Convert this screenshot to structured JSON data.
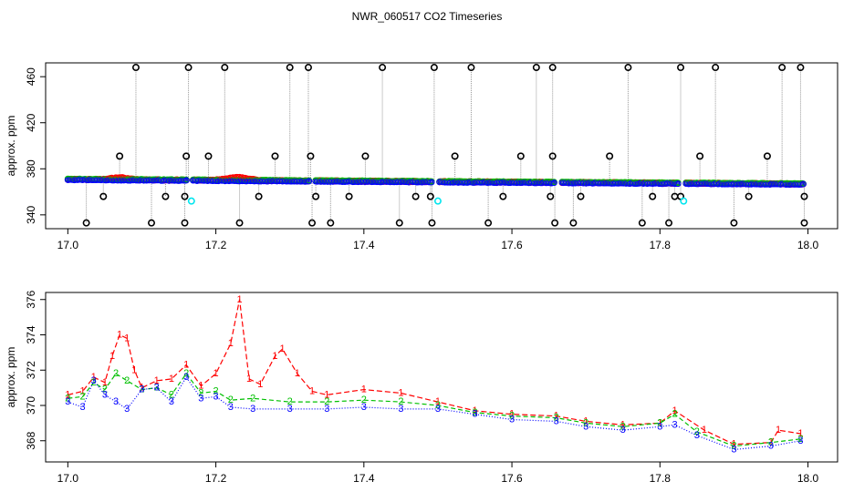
{
  "figure": {
    "title": "NWR_060517  CO2 Timeseries"
  },
  "colors": {
    "series1": "#ff0000",
    "series2": "#00c000",
    "series3": "#0000ff",
    "flagged": "#000000",
    "cyan": "#00e5ee",
    "drop": "#999999"
  },
  "chart_data": [
    {
      "type": "scatter",
      "title": "NWR_060517  CO2 Timeseries",
      "xlabel": "",
      "ylabel": "approx. ppm",
      "xlim": [
        16.97,
        18.04
      ],
      "ylim": [
        328,
        472
      ],
      "x_ticks": [
        17.0,
        17.2,
        17.4,
        17.6,
        17.8,
        18.0
      ],
      "x_tick_labels": [
        "17.0",
        "17.2",
        "17.4",
        "17.6",
        "17.8",
        "18.0"
      ],
      "y_ticks": [
        340,
        380,
        420,
        460
      ],
      "y_tick_labels": [
        "340",
        "380",
        "420",
        "460"
      ],
      "main_series": {
        "name": "",
        "x_start": 17.0,
        "x_end": 17.995,
        "y_start": 370.5,
        "y_end": 366.5
      },
      "flagged_high": [
        17.092,
        17.163,
        17.212,
        17.3,
        17.325,
        17.425,
        17.495,
        17.545,
        17.633,
        17.655,
        17.757,
        17.828,
        17.875,
        17.965,
        17.99
      ],
      "flagged_mid_high": [
        17.07,
        17.16,
        17.19,
        17.28,
        17.328,
        17.402,
        17.523,
        17.612,
        17.655,
        17.732,
        17.854,
        17.945
      ],
      "flagged_mid_low": [
        17.048,
        17.132,
        17.158,
        17.258,
        17.335,
        17.38,
        17.47,
        17.49,
        17.588,
        17.652,
        17.693,
        17.79,
        17.828,
        17.82,
        17.92,
        17.995
      ],
      "flagged_low": [
        17.025,
        17.113,
        17.158,
        17.232,
        17.33,
        17.355,
        17.448,
        17.492,
        17.568,
        17.658,
        17.683,
        17.776,
        17.812,
        17.9,
        17.995
      ],
      "cyan_points": [
        {
          "x": 17.167,
          "y": 352
        },
        {
          "x": 17.5,
          "y": 352
        },
        {
          "x": 17.832,
          "y": 352
        }
      ]
    },
    {
      "type": "line",
      "title": "",
      "xlabel": "",
      "ylabel": "approx. ppm",
      "xlim": [
        16.97,
        18.04
      ],
      "ylim": [
        366.8,
        376.4
      ],
      "x_ticks": [
        17.0,
        17.2,
        17.4,
        17.6,
        17.8,
        18.0
      ],
      "x_tick_labels": [
        "17.0",
        "17.2",
        "17.4",
        "17.6",
        "17.8",
        "18.0"
      ],
      "y_ticks": [
        368,
        370,
        372,
        374,
        376
      ],
      "y_tick_labels": [
        "368",
        "370",
        "372",
        "374",
        "376"
      ],
      "series": [
        {
          "name": "1",
          "marker": "1",
          "x": [
            17.0,
            17.02,
            17.035,
            17.05,
            17.06,
            17.07,
            17.08,
            17.09,
            17.1,
            17.12,
            17.14,
            17.16,
            17.18,
            17.2,
            17.22,
            17.232,
            17.245,
            17.26,
            17.28,
            17.29,
            17.31,
            17.33,
            17.35,
            17.4,
            17.45,
            17.5,
            17.55,
            17.6,
            17.66,
            17.7,
            17.75,
            17.8,
            17.82,
            17.86,
            17.9,
            17.95,
            17.96,
            17.99
          ],
          "y": [
            370.6,
            370.8,
            371.6,
            371.3,
            372.8,
            374.0,
            373.8,
            372.0,
            371.0,
            371.4,
            371.5,
            372.3,
            371.1,
            371.8,
            373.5,
            376.0,
            371.5,
            371.2,
            372.8,
            373.2,
            371.8,
            370.8,
            370.6,
            370.9,
            370.7,
            370.2,
            369.7,
            369.5,
            369.4,
            369.1,
            368.9,
            369.0,
            369.7,
            368.6,
            367.8,
            367.9,
            368.6,
            368.4
          ]
        },
        {
          "name": "2",
          "marker": "2",
          "x": [
            17.0,
            17.02,
            17.035,
            17.05,
            17.065,
            17.08,
            17.1,
            17.12,
            17.14,
            17.16,
            17.18,
            17.2,
            17.22,
            17.25,
            17.3,
            17.35,
            17.4,
            17.45,
            17.5,
            17.55,
            17.6,
            17.66,
            17.7,
            17.75,
            17.8,
            17.82,
            17.85,
            17.9,
            17.95,
            17.99
          ],
          "y": [
            370.4,
            370.5,
            371.3,
            370.9,
            371.8,
            371.4,
            370.9,
            371.0,
            370.6,
            371.8,
            370.7,
            370.8,
            370.3,
            370.4,
            370.2,
            370.2,
            370.3,
            370.2,
            370.0,
            369.6,
            369.4,
            369.3,
            369.0,
            368.8,
            369.0,
            369.5,
            368.5,
            367.7,
            367.9,
            368.1
          ]
        },
        {
          "name": "3",
          "marker": "3",
          "x": [
            17.0,
            17.02,
            17.035,
            17.05,
            17.065,
            17.08,
            17.1,
            17.12,
            17.14,
            17.16,
            17.18,
            17.2,
            17.22,
            17.25,
            17.3,
            17.35,
            17.4,
            17.45,
            17.5,
            17.55,
            17.6,
            17.66,
            17.7,
            17.75,
            17.8,
            17.82,
            17.85,
            17.9,
            17.95,
            17.99
          ],
          "y": [
            370.2,
            369.9,
            371.4,
            370.6,
            370.2,
            369.8,
            370.9,
            371.0,
            370.2,
            371.6,
            370.4,
            370.5,
            369.9,
            369.8,
            369.8,
            369.8,
            369.9,
            369.8,
            369.8,
            369.5,
            369.2,
            369.1,
            368.8,
            368.6,
            368.8,
            368.9,
            368.3,
            367.5,
            367.7,
            368.0
          ]
        }
      ]
    }
  ]
}
